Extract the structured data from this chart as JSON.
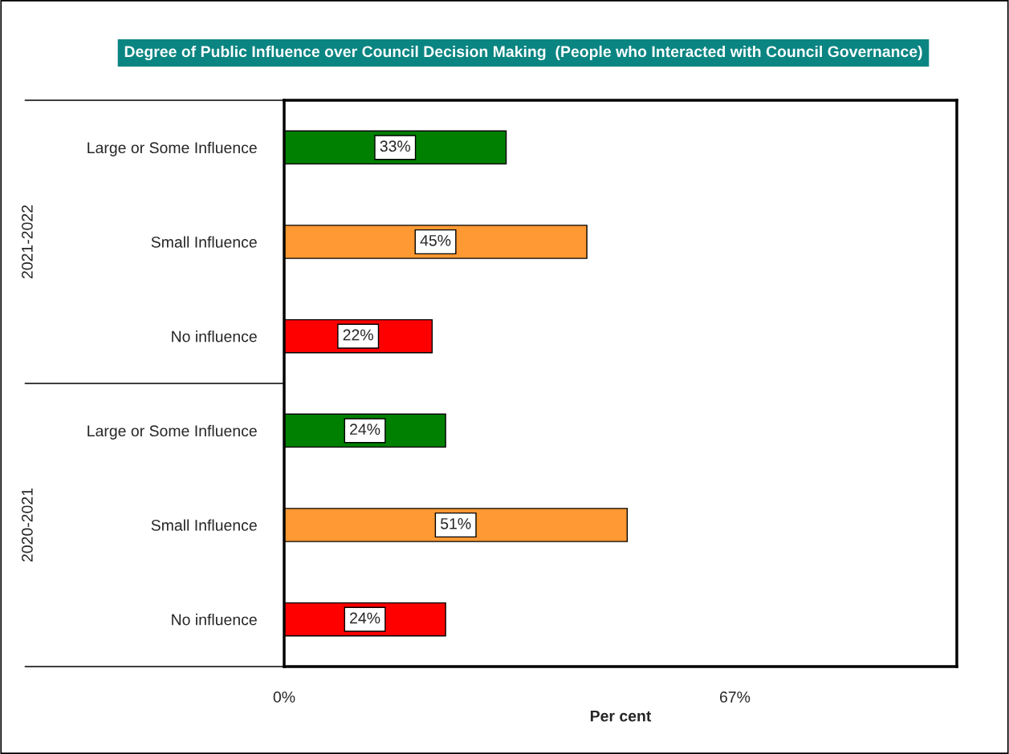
{
  "chart_data": {
    "type": "bar",
    "orientation": "horizontal",
    "title": "Degree of Public Influence over Council Decision Making  (People who Interacted with Council Governance)",
    "xlabel": "Per cent",
    "categories": [
      "Large or Some Influence",
      "Small Influence",
      "No influence",
      "Large or Some Influence",
      "Small Influence",
      "No influence"
    ],
    "values": [
      33,
      45,
      22,
      24,
      51,
      24
    ],
    "colors": [
      "#008000",
      "#ff9933",
      "#ff0000",
      "#008000",
      "#ff9933",
      "#ff0000"
    ],
    "value_labels": [
      "33%",
      "45%",
      "22%",
      "24%",
      "51%",
      "24%"
    ],
    "annotations": [
      "2021-2022",
      "2020-2021"
    ],
    "xlim": [
      0,
      100
    ],
    "xticks": [
      {
        "value": 0,
        "label": "0%"
      },
      {
        "value": 67,
        "label": "67%"
      }
    ],
    "grid": false
  }
}
